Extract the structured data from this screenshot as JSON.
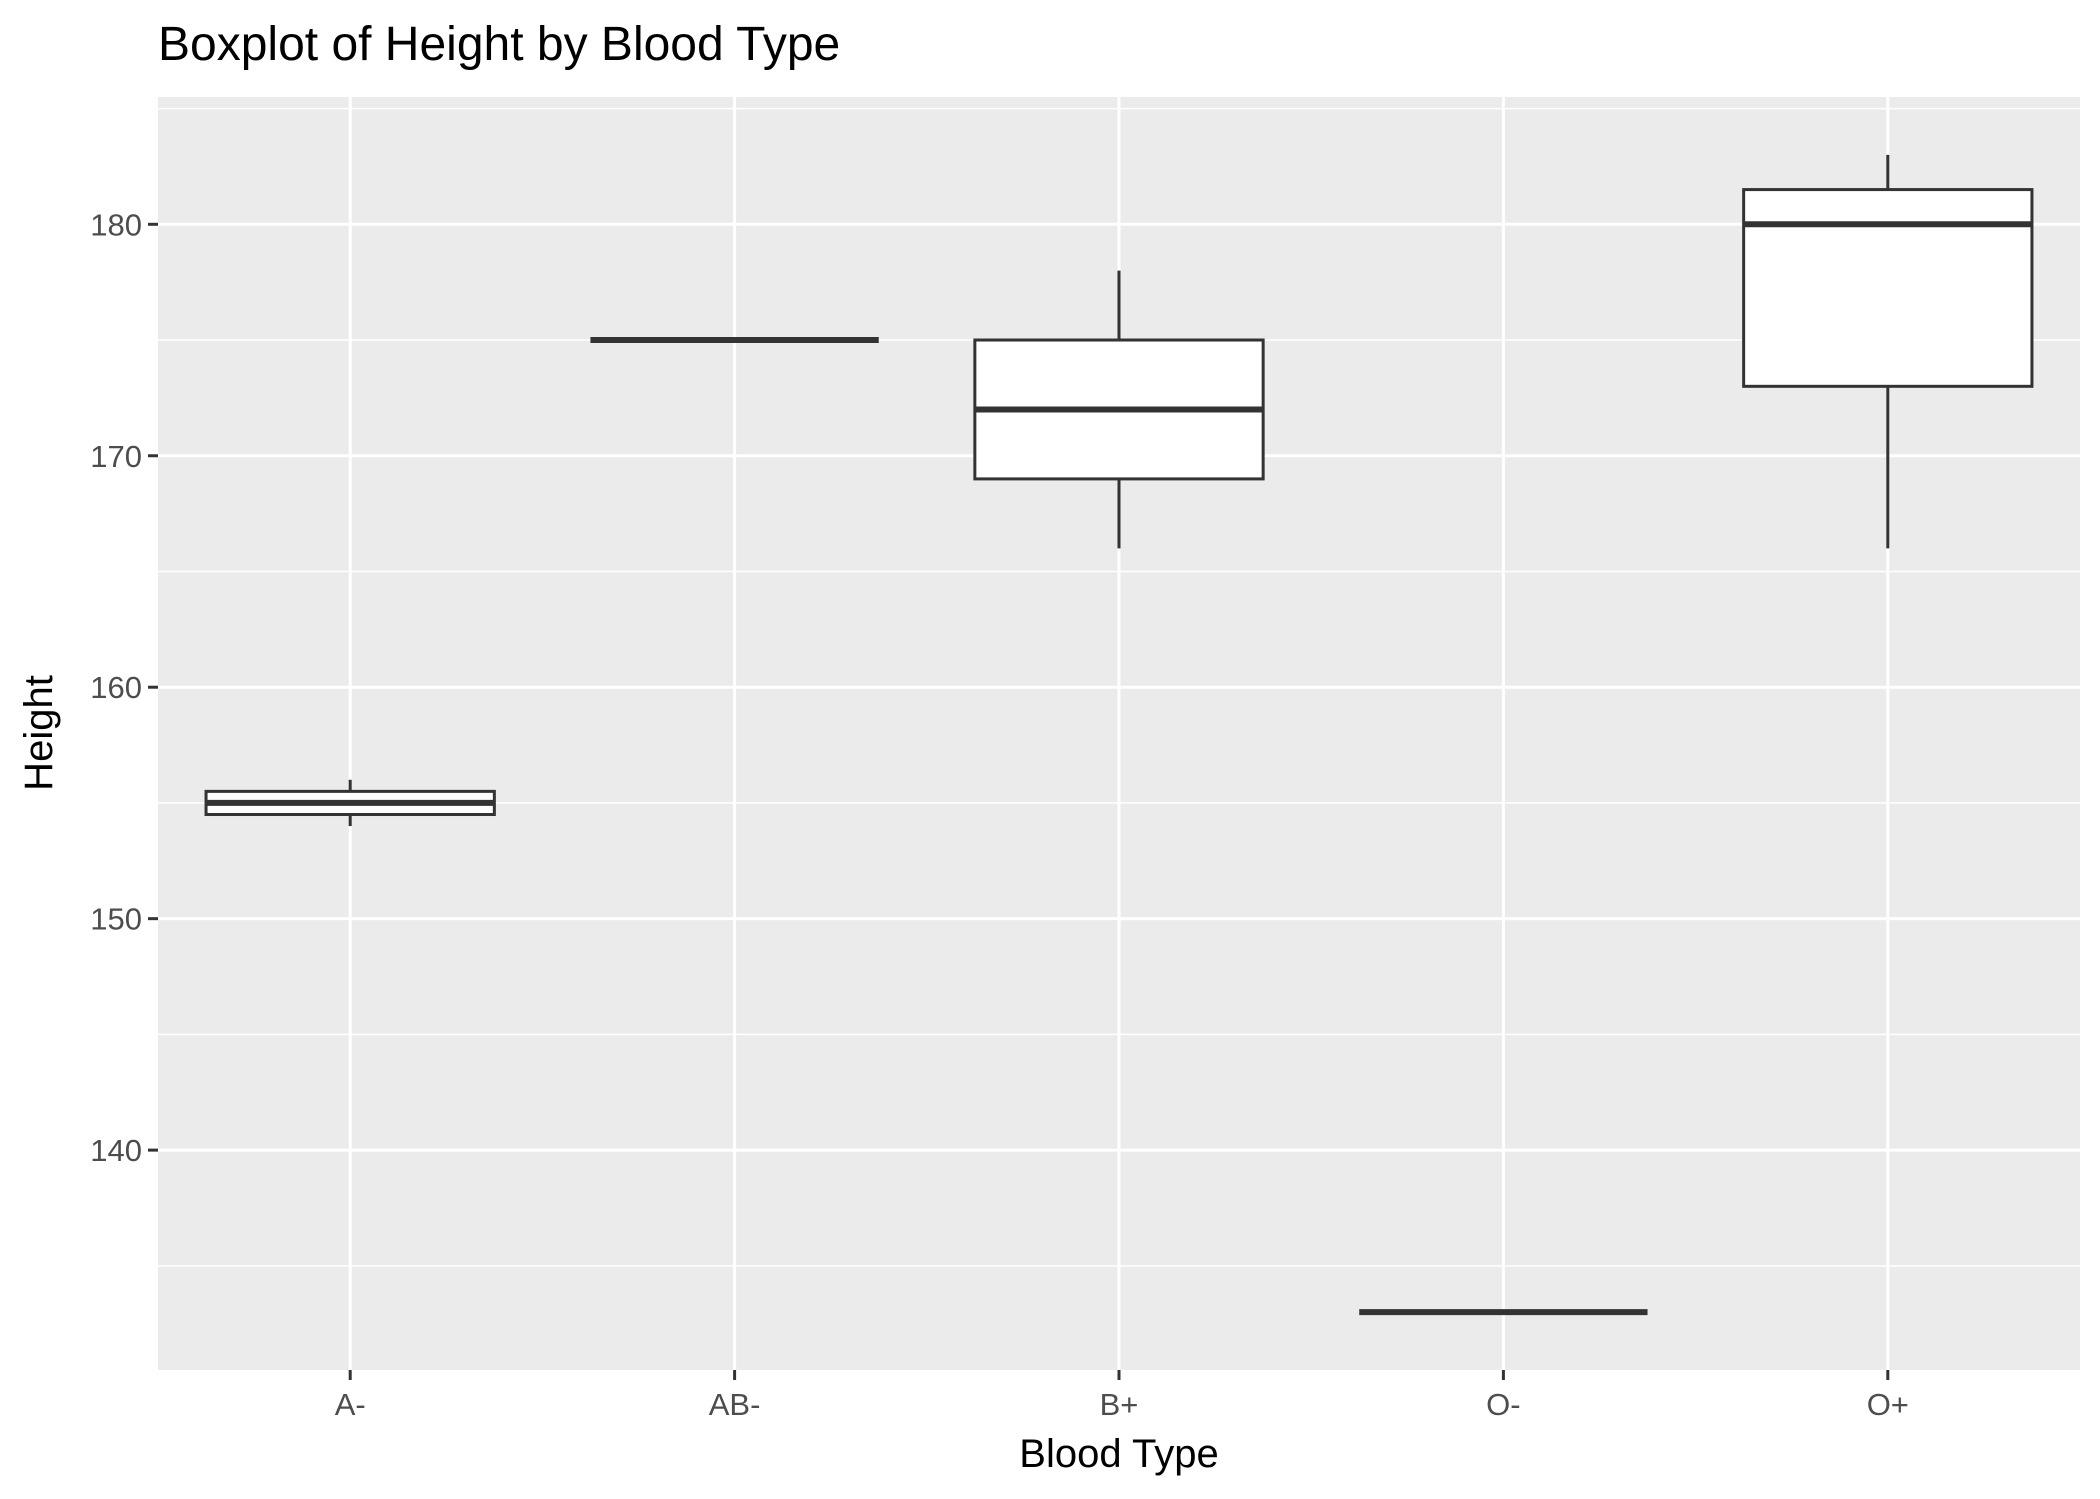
{
  "chart_data": {
    "type": "boxplot",
    "title": "Boxplot of Height by Blood Type",
    "xlabel": "Blood Type",
    "ylabel": "Height",
    "categories": [
      "A-",
      "AB-",
      "B+",
      "O-",
      "O+"
    ],
    "boxes": [
      {
        "category": "A-",
        "whisker_low": 154,
        "q1": 154.5,
        "median": 155,
        "q3": 155.5,
        "whisker_high": 156
      },
      {
        "category": "AB-",
        "whisker_low": 175,
        "q1": 175,
        "median": 175,
        "q3": 175,
        "whisker_high": 175
      },
      {
        "category": "B+",
        "whisker_low": 166,
        "q1": 169,
        "median": 172,
        "q3": 175,
        "whisker_high": 178
      },
      {
        "category": "O-",
        "whisker_low": 133,
        "q1": 133,
        "median": 133,
        "q3": 133,
        "whisker_high": 133
      },
      {
        "category": "O+",
        "whisker_low": 166,
        "q1": 173,
        "median": 180,
        "q3": 181.5,
        "whisker_high": 183
      }
    ],
    "ylim": [
      130.5,
      185.5
    ],
    "y_ticks": [
      140,
      150,
      160,
      170,
      180
    ],
    "y_tick_labels": [
      "140",
      "150",
      "160",
      "170",
      "180"
    ],
    "grid": true,
    "legend": "none",
    "colors": {
      "panel_background": "#ebebeb",
      "grid_major": "#ffffff",
      "grid_minor": "#f5f5f5",
      "box_fill": "#ffffff",
      "box_stroke": "#333333",
      "tick_text": "#4d4d4d",
      "tick_mark": "#333333",
      "title_text": "#000000"
    }
  }
}
